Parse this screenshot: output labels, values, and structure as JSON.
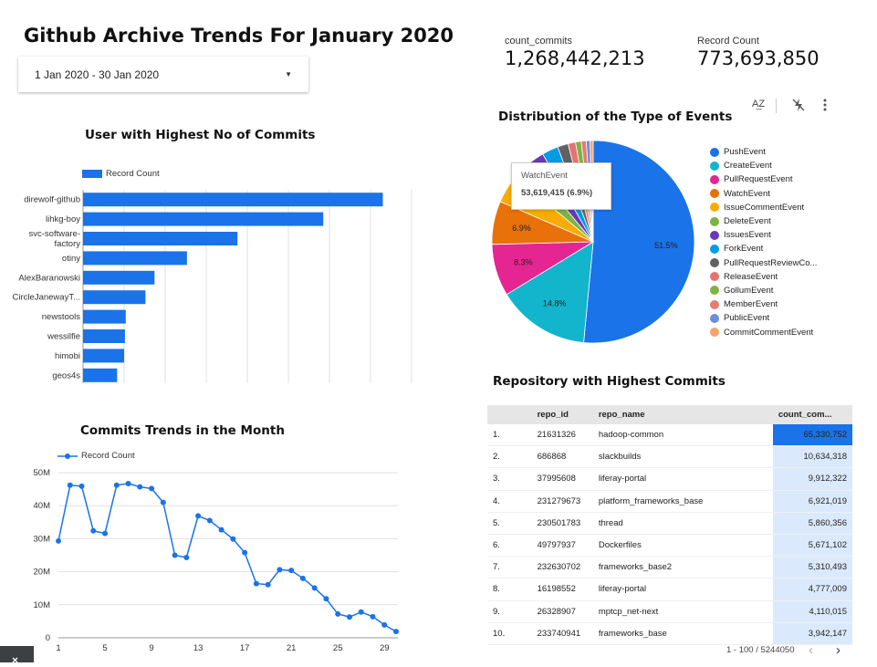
{
  "page": {
    "title": "Github Archive Trends For January 2020",
    "date_range": "1 Jan 2020 - 30 Jan 2020"
  },
  "scorecards": [
    {
      "label": "count_commits",
      "value": "1,268,442,213"
    },
    {
      "label": "Record Count",
      "value": "773,693,850"
    }
  ],
  "icons": {
    "sort": "sort-az-icon",
    "filter": "filter-off-icon",
    "more": "more-vert-icon",
    "dropdown": "dropdown-arrow-icon"
  },
  "colors": {
    "accent": "#1a73e8"
  },
  "chart_data": [
    {
      "type": "bar",
      "orientation": "horizontal",
      "title": "User with Highest No of Commits",
      "legend": "Record Count",
      "legend_position": "top-left",
      "categories": [
        "direwolf-github",
        "lihkg-boy",
        "svc-software-factory",
        "otiny",
        "AlexBaranowski",
        "CircleJanewayT...",
        "newstools",
        "wessilfie",
        "himobi",
        "geos4s"
      ],
      "category_labels": [
        "direwolf-github",
        "lihkg-boy",
        "svc-software-\nfactory",
        "otiny",
        "AlexBaranowski",
        "CircleJanewayT...",
        "newstools",
        "wessilfie",
        "himobi",
        "geos4s"
      ],
      "values": [
        7300000,
        5850000,
        3760000,
        2530000,
        1740000,
        1520000,
        1040000,
        1020000,
        1000000,
        830000
      ],
      "xlim": [
        0,
        8000000
      ],
      "xticks": [
        "0",
        "1M",
        "2M",
        "3M",
        "4M",
        "5M",
        "6M",
        "7M",
        "8M"
      ],
      "grid": true
    },
    {
      "type": "line",
      "title": "Commits Trends in the Month",
      "legend": "Record Count",
      "legend_position": "top-left",
      "x": [
        1,
        2,
        3,
        4,
        5,
        6,
        7,
        8,
        9,
        10,
        11,
        12,
        13,
        14,
        15,
        16,
        17,
        18,
        19,
        20,
        21,
        22,
        23,
        24,
        25,
        26,
        27,
        28,
        29,
        30
      ],
      "y": [
        29300000,
        46200000,
        45900000,
        32400000,
        31600000,
        46200000,
        46700000,
        45700000,
        45200000,
        41000000,
        25000000,
        24300000,
        36900000,
        35500000,
        32700000,
        29900000,
        25800000,
        16400000,
        16100000,
        20600000,
        20400000,
        18000000,
        15100000,
        11800000,
        7200000,
        6300000,
        7800000,
        6400000,
        3900000,
        1900000
      ],
      "ylim": [
        0,
        50000000
      ],
      "yticks": [
        "0",
        "10M",
        "20M",
        "30M",
        "40M",
        "50M"
      ],
      "xticks": [
        "1",
        "5",
        "9",
        "13",
        "17",
        "21",
        "25",
        "29"
      ],
      "grid": true
    },
    {
      "type": "pie",
      "title": "Distribution of the Type of Events",
      "legend_position": "right",
      "slices": [
        {
          "name": "PushEvent",
          "value": 51.5,
          "label": "51.5%",
          "color": "#1a73e8"
        },
        {
          "name": "CreateEvent",
          "value": 14.8,
          "label": "14.8%",
          "color": "#12b5cb"
        },
        {
          "name": "PullRequestEvent",
          "value": 8.3,
          "label": "8.3%",
          "color": "#e52592"
        },
        {
          "name": "WatchEvent",
          "value": 6.9,
          "label": "6.9%",
          "color": "#e8710a"
        },
        {
          "name": "IssueCommentEvent",
          "value": 4.6,
          "label": "",
          "color": "#f9ab00"
        },
        {
          "name": "DeleteEvent",
          "value": 2.9,
          "label": "",
          "color": "#7cb342"
        },
        {
          "name": "IssuesEvent",
          "value": 2.7,
          "label": "",
          "color": "#673ab7"
        },
        {
          "name": "ForkEvent",
          "value": 2.6,
          "label": "",
          "color": "#039be5"
        },
        {
          "name": "PullRequestReviewCo...",
          "value": 1.7,
          "label": "",
          "color": "#616161"
        },
        {
          "name": "ReleaseEvent",
          "value": 1.2,
          "label": "",
          "color": "#e57373"
        },
        {
          "name": "GollumEvent",
          "value": 0.9,
          "label": "",
          "color": "#7cb342"
        },
        {
          "name": "MemberEvent",
          "value": 0.8,
          "label": "",
          "color": "#e67c73"
        },
        {
          "name": "PublicEvent",
          "value": 0.6,
          "label": "",
          "color": "#6a8fd8"
        },
        {
          "name": "CommitCommentEvent",
          "value": 0.5,
          "label": "",
          "color": "#f5a36c"
        }
      ],
      "tooltip": {
        "name": "WatchEvent",
        "value": "53,619,415 (6.9%)"
      }
    },
    {
      "type": "table",
      "title": "Repository with Highest Commits",
      "columns": [
        "repo_id",
        "repo_name",
        "count_com..."
      ],
      "rows": [
        {
          "n": "1.",
          "repo_id": "21631326",
          "repo_name": "hadoop-common",
          "count": "65,330,752",
          "v": 65330752
        },
        {
          "n": "2.",
          "repo_id": "686868",
          "repo_name": "slackbuilds",
          "count": "10,634,318",
          "v": 10634318
        },
        {
          "n": "3.",
          "repo_id": "37995608",
          "repo_name": "liferay-portal",
          "count": "9,912,322",
          "v": 9912322
        },
        {
          "n": "4.",
          "repo_id": "231279673",
          "repo_name": "platform_frameworks_base",
          "count": "6,921,019",
          "v": 6921019
        },
        {
          "n": "5.",
          "repo_id": "230501783",
          "repo_name": "thread",
          "count": "5,860,356",
          "v": 5860356
        },
        {
          "n": "6.",
          "repo_id": "49797937",
          "repo_name": "Dockerfiles",
          "count": "5,671,102",
          "v": 5671102
        },
        {
          "n": "7.",
          "repo_id": "232630702",
          "repo_name": "frameworks_base2",
          "count": "5,310,493",
          "v": 5310493
        },
        {
          "n": "8.",
          "repo_id": "16198552",
          "repo_name": "liferay-portal",
          "count": "4,777,009",
          "v": 4777009
        },
        {
          "n": "9.",
          "repo_id": "26328907",
          "repo_name": "mptcp_net-next",
          "count": "4,110,015",
          "v": 4110015
        },
        {
          "n": "10.",
          "repo_id": "233740941",
          "repo_name": "frameworks_base",
          "count": "3,942,147",
          "v": 3942147
        }
      ],
      "pagination": "1 - 100 / 5244050"
    }
  ]
}
